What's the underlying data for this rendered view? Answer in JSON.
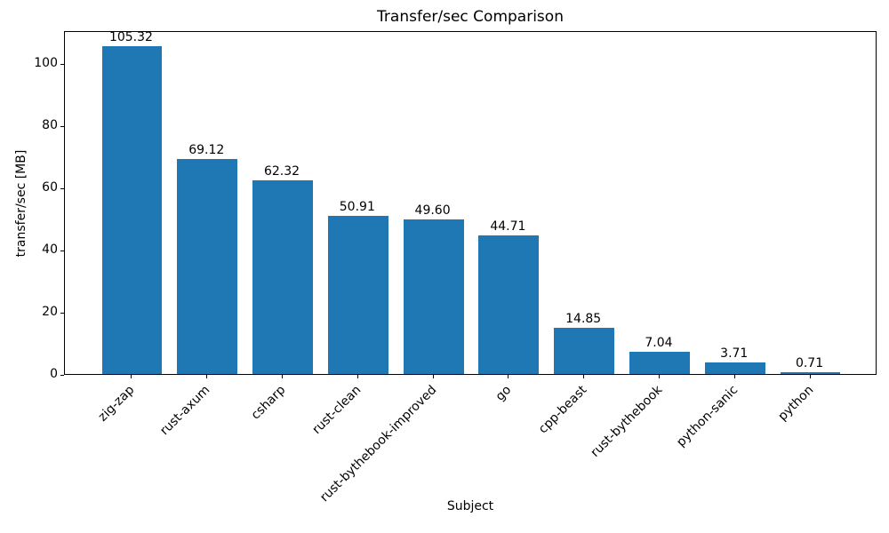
{
  "chart_data": {
    "type": "bar",
    "title": "Transfer/sec Comparison",
    "xlabel": "Subject",
    "ylabel": "transfer/sec [MB]",
    "categories": [
      "zig-zap",
      "rust-axum",
      "csharp",
      "rust-clean",
      "rust-bythebook-improved",
      "go",
      "cpp-beast",
      "rust-bythebook",
      "python-sanic",
      "python"
    ],
    "values": [
      105.32,
      69.12,
      62.32,
      50.91,
      49.6,
      44.71,
      14.85,
      7.04,
      3.71,
      0.71
    ],
    "value_labels": [
      "105.32",
      "69.12",
      "62.32",
      "50.91",
      "49.60",
      "44.71",
      "14.85",
      "7.04",
      "3.71",
      "0.71"
    ],
    "ylim": [
      0,
      110.6
    ],
    "yticks": [
      0,
      20,
      40,
      60,
      80,
      100
    ],
    "xtick_rotation_deg": 45,
    "bar_color": "#1f77b4",
    "bar_width_fraction": 0.8,
    "grid": false,
    "legend_position": "none"
  }
}
